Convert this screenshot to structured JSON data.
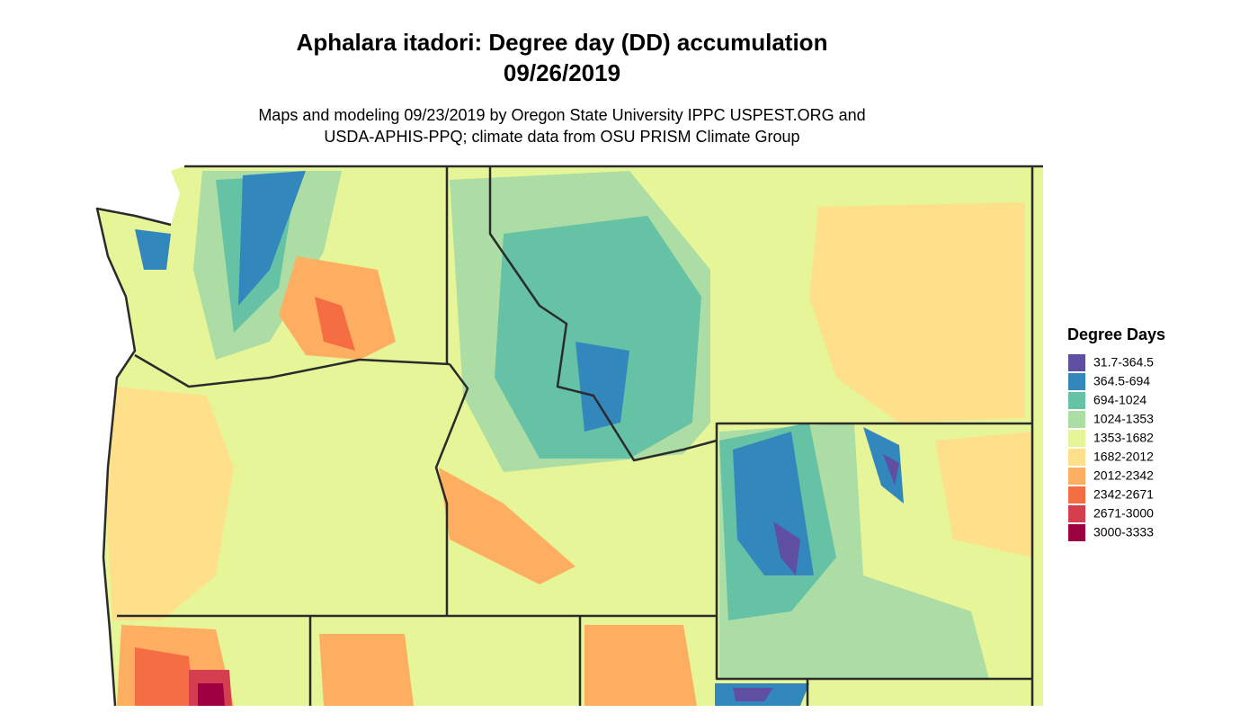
{
  "title": [
    "Aphalara itadori: Degree day (DD) accumulation",
    "09/26/2019"
  ],
  "subtitle": [
    "Maps and modeling 09/23/2019 by Oregon State University IPPC USPEST.ORG and",
    "USDA-APHIS-PPQ; climate data from OSU PRISM Climate Group"
  ],
  "legend": {
    "title": "Degree Days",
    "items": [
      {
        "label": "31.7-364.5",
        "color": "#5e4fa2"
      },
      {
        "label": "364.5-694",
        "color": "#3288bd"
      },
      {
        "label": "694-1024",
        "color": "#66c2a5"
      },
      {
        "label": "1024-1353",
        "color": "#abdda4"
      },
      {
        "label": "1353-1682",
        "color": "#e6f598"
      },
      {
        "label": "1682-2012",
        "color": "#fee08b"
      },
      {
        "label": "2012-2342",
        "color": "#fdae61"
      },
      {
        "label": "2342-2671",
        "color": "#f46d43"
      },
      {
        "label": "2671-3000",
        "color": "#d53e4f"
      },
      {
        "label": "3000-3333",
        "color": "#9e0142"
      }
    ]
  }
}
